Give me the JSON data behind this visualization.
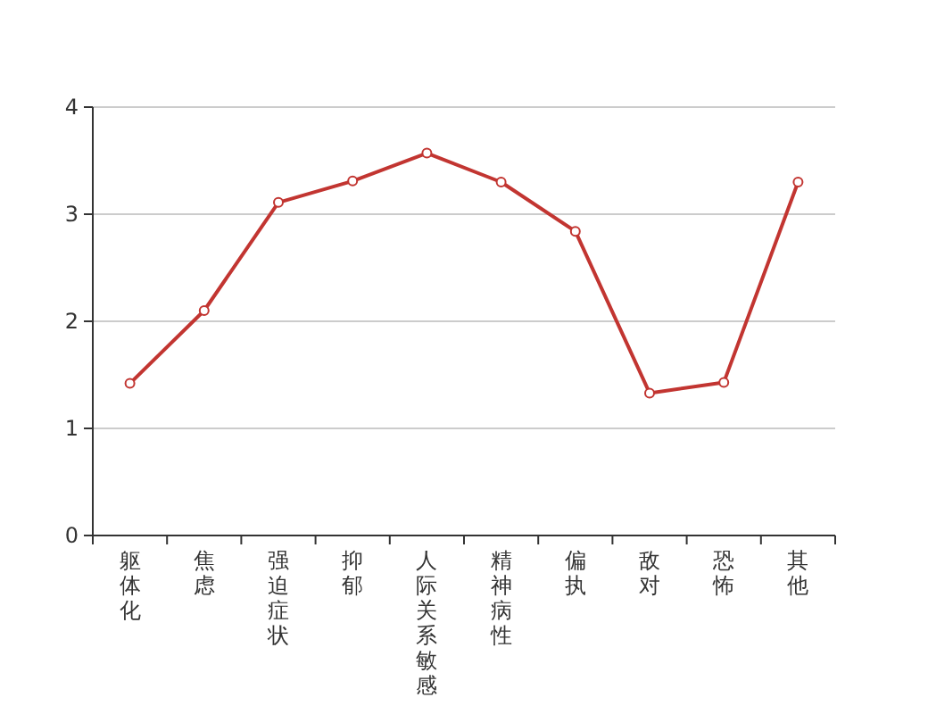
{
  "chart_data": {
    "type": "line",
    "categories": [
      "躯体化",
      "焦虑",
      "强迫症状",
      "抑郁",
      "人际关系敏感",
      "精神病性",
      "偏执",
      "敌对",
      "恐怖",
      "其他"
    ],
    "series": [
      {
        "color": "#c23531",
        "values": [
          1.42,
          2.1,
          3.11,
          3.31,
          3.57,
          3.3,
          2.84,
          1.33,
          1.43,
          3.3
        ]
      }
    ],
    "ylim": [
      0,
      4
    ],
    "yticks": [
      0,
      1,
      2,
      3,
      4
    ],
    "grid": "y",
    "marker": "circle",
    "line_style": "solid"
  }
}
